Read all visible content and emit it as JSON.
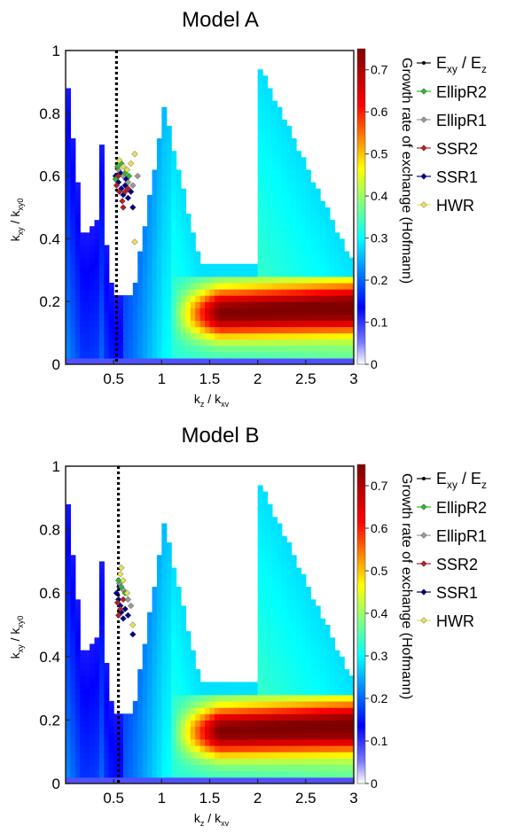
{
  "chart_data": [
    {
      "type": "heatmap",
      "title": "Model A",
      "xlabel": "kz / kxv",
      "xlabel_parts": {
        "base": "k",
        "sub": "z",
        "sep": " / ",
        "base2": "k",
        "sub2": "xv"
      },
      "ylabel_parts": {
        "base": "k",
        "sub": "xy",
        "sep": " / ",
        "base2": "k",
        "sub2": "xy0"
      },
      "xlim": [
        0,
        3
      ],
      "ylim": [
        0,
        1
      ],
      "xticks": [
        "0.5",
        "1",
        "1.5",
        "2",
        "2.5",
        "3"
      ],
      "xtick_values": [
        0.5,
        1,
        1.5,
        2,
        2.5,
        3
      ],
      "yticks": [
        "0",
        "0.2",
        "0.4",
        "0.6",
        "0.8",
        "1"
      ],
      "ytick_values": [
        0,
        0.2,
        0.4,
        0.6,
        0.8,
        1
      ],
      "colorbar": {
        "label": "Growth rate of exchange (Hofmann)",
        "ticks": [
          "0",
          "0.1",
          "0.2",
          "0.3",
          "0.4",
          "0.5",
          "0.6",
          "0.7"
        ],
        "tick_values": [
          0,
          0.1,
          0.2,
          0.3,
          0.4,
          0.5,
          0.6,
          0.7
        ],
        "range": [
          0,
          0.75
        ],
        "colormap": [
          "#ffffff",
          "#0000ff",
          "#00ffff",
          "#ffff00",
          "#ff0000",
          "#800000"
        ]
      },
      "vline": {
        "x": 0.53,
        "style": "dotted",
        "color": "#000000"
      },
      "legend": {
        "position": "right",
        "entries": [
          {
            "label": "Exy / Ez",
            "base": "E",
            "sub": "xy",
            "sep": " / ",
            "base2": "E",
            "sub2": "z",
            "color": "#000000",
            "marker": "dot"
          },
          {
            "label": "EllipR2",
            "color": "#2fb82f",
            "marker": "diamond"
          },
          {
            "label": "EllipR1",
            "color": "#999999",
            "marker": "diamond"
          },
          {
            "label": "SSR2",
            "color": "#b22222",
            "marker": "diamond"
          },
          {
            "label": "SSR1",
            "color": "#00008b",
            "marker": "diamond"
          },
          {
            "label": "HWR",
            "color": "#e8e05a",
            "marker": "diamond"
          }
        ]
      },
      "series": [
        {
          "name": "SSR1",
          "color": "#00008b",
          "points": [
            [
              0.52,
              0.6
            ],
            [
              0.55,
              0.58
            ],
            [
              0.58,
              0.56
            ],
            [
              0.6,
              0.54
            ],
            [
              0.62,
              0.57
            ],
            [
              0.65,
              0.53
            ],
            [
              0.57,
              0.61
            ],
            [
              0.63,
              0.59
            ],
            [
              0.68,
              0.55
            ],
            [
              0.7,
              0.5
            ]
          ]
        },
        {
          "name": "SSR2",
          "color": "#b22222",
          "points": [
            [
              0.53,
              0.57
            ],
            [
              0.56,
              0.55
            ],
            [
              0.59,
              0.52
            ],
            [
              0.6,
              0.5
            ],
            [
              0.62,
              0.55
            ],
            [
              0.55,
              0.6
            ],
            [
              0.65,
              0.56
            ]
          ]
        },
        {
          "name": "EllipR1",
          "color": "#999999",
          "points": [
            [
              0.55,
              0.62
            ],
            [
              0.6,
              0.6
            ],
            [
              0.65,
              0.58
            ],
            [
              0.7,
              0.57
            ],
            [
              0.75,
              0.6
            ]
          ]
        },
        {
          "name": "EllipR2",
          "color": "#2fb82f",
          "points": [
            [
              0.54,
              0.63
            ],
            [
              0.58,
              0.64
            ],
            [
              0.62,
              0.61
            ],
            [
              0.66,
              0.6
            ],
            [
              0.52,
              0.59
            ]
          ]
        },
        {
          "name": "HWR",
          "color": "#e8e05a",
          "points": [
            [
              0.56,
              0.65
            ],
            [
              0.6,
              0.63
            ],
            [
              0.64,
              0.62
            ],
            [
              0.68,
              0.64
            ],
            [
              0.72,
              0.67
            ],
            [
              0.72,
              0.39
            ]
          ]
        }
      ]
    },
    {
      "type": "heatmap",
      "title": "Model B",
      "xlabel": "kz / kxv",
      "xlabel_parts": {
        "base": "k",
        "sub": "z",
        "sep": " / ",
        "base2": "k",
        "sub2": "xv"
      },
      "ylabel_parts": {
        "base": "k",
        "sub": "xy",
        "sep": " / ",
        "base2": "k",
        "sub2": "xy0"
      },
      "xlim": [
        0,
        3
      ],
      "ylim": [
        0,
        1
      ],
      "xticks": [
        "0.5",
        "1",
        "1.5",
        "2",
        "2.5",
        "3"
      ],
      "xtick_values": [
        0.5,
        1,
        1.5,
        2,
        2.5,
        3
      ],
      "yticks": [
        "0",
        "0.2",
        "0.4",
        "0.6",
        "0.8",
        "1"
      ],
      "ytick_values": [
        0,
        0.2,
        0.4,
        0.6,
        0.8,
        1
      ],
      "colorbar": {
        "label": "Growth rate of exchange (Hofmann)",
        "ticks": [
          "0",
          "0.1",
          "0.2",
          "0.3",
          "0.4",
          "0.5",
          "0.6",
          "0.7"
        ],
        "tick_values": [
          0,
          0.1,
          0.2,
          0.3,
          0.4,
          0.5,
          0.6,
          0.7
        ],
        "range": [
          0,
          0.75
        ],
        "colormap": [
          "#ffffff",
          "#0000ff",
          "#00ffff",
          "#ffff00",
          "#ff0000",
          "#800000"
        ]
      },
      "vline": {
        "x": 0.55,
        "style": "dotted",
        "color": "#000000"
      },
      "legend": {
        "position": "right",
        "entries": [
          {
            "label": "Exy / Ez",
            "base": "E",
            "sub": "xy",
            "sep": " / ",
            "base2": "E",
            "sub2": "z",
            "color": "#000000",
            "marker": "dot"
          },
          {
            "label": "EllipR2",
            "color": "#2fb82f",
            "marker": "diamond"
          },
          {
            "label": "EllipR1",
            "color": "#999999",
            "marker": "diamond"
          },
          {
            "label": "SSR2",
            "color": "#b22222",
            "marker": "diamond"
          },
          {
            "label": "SSR1",
            "color": "#00008b",
            "marker": "diamond"
          },
          {
            "label": "HWR",
            "color": "#e8e05a",
            "marker": "diamond"
          }
        ]
      },
      "series": [
        {
          "name": "SSR1",
          "color": "#00008b",
          "points": [
            [
              0.53,
              0.6
            ],
            [
              0.55,
              0.58
            ],
            [
              0.57,
              0.56
            ],
            [
              0.58,
              0.54
            ],
            [
              0.6,
              0.52
            ],
            [
              0.56,
              0.62
            ],
            [
              0.62,
              0.55
            ],
            [
              0.65,
              0.53
            ],
            [
              0.7,
              0.47
            ]
          ]
        },
        {
          "name": "SSR2",
          "color": "#b22222",
          "points": [
            [
              0.54,
              0.57
            ],
            [
              0.57,
              0.55
            ],
            [
              0.6,
              0.58
            ],
            [
              0.55,
              0.53
            ]
          ]
        },
        {
          "name": "EllipR1",
          "color": "#999999",
          "points": [
            [
              0.56,
              0.63
            ],
            [
              0.6,
              0.61
            ],
            [
              0.65,
              0.58
            ],
            [
              0.68,
              0.56
            ]
          ]
        },
        {
          "name": "EllipR2",
          "color": "#2fb82f",
          "points": [
            [
              0.55,
              0.64
            ],
            [
              0.58,
              0.62
            ],
            [
              0.62,
              0.6
            ]
          ]
        },
        {
          "name": "HWR",
          "color": "#e8e05a",
          "points": [
            [
              0.57,
              0.66
            ],
            [
              0.6,
              0.64
            ],
            [
              0.64,
              0.6
            ],
            [
              0.7,
              0.5
            ],
            [
              0.58,
              0.68
            ]
          ]
        }
      ]
    }
  ]
}
